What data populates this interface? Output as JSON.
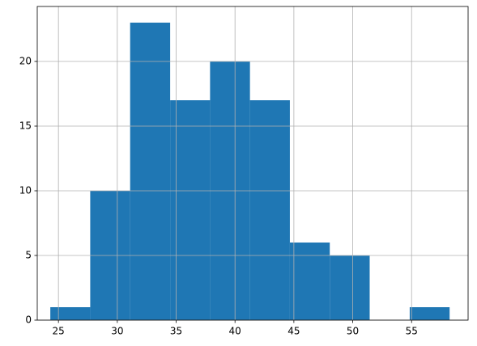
{
  "chart_data": {
    "type": "histogram",
    "bins": [
      24.31,
      27.7,
      31.09,
      34.49,
      37.88,
      41.27,
      44.66,
      48.05,
      51.44,
      54.84,
      58.23
    ],
    "values": [
      1,
      10,
      23,
      17,
      20,
      17,
      6,
      5,
      0,
      1
    ],
    "color": "#1f77b4",
    "xlim": [
      23.2,
      59.8
    ],
    "xticks": [
      25,
      30,
      35,
      40,
      45,
      50,
      55
    ],
    "ylim": [
      0,
      24.25
    ],
    "yticks": [
      0,
      5,
      10,
      15,
      20
    ],
    "grid": true
  }
}
